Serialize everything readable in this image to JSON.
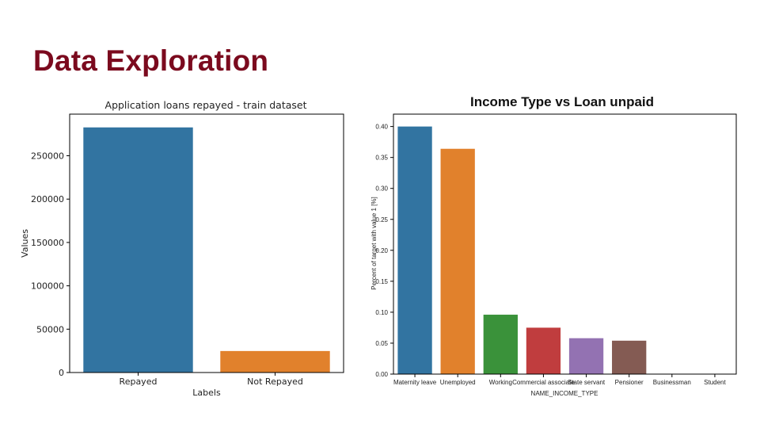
{
  "slide": {
    "title": "Data Exploration"
  },
  "chart_data": [
    {
      "type": "bar",
      "title": "Application loans repayed - train dataset",
      "xlabel": "Labels",
      "ylabel": "Values",
      "categories": [
        "Repayed",
        "Not Repayed"
      ],
      "values": [
        282700,
        24800
      ],
      "colors": [
        "#3274a1",
        "#e1812c"
      ],
      "ylim": [
        0,
        298000
      ],
      "yticks": [
        0,
        50000,
        100000,
        150000,
        200000,
        250000
      ],
      "grid": false,
      "legend": false
    },
    {
      "type": "bar",
      "title": "Income Type vs Loan unpaid",
      "xlabel": "NAME_INCOME_TYPE",
      "ylabel": "Percent of target with value 1 [%]",
      "categories": [
        "Maternity leave",
        "Unemployed",
        "Working",
        "Commercial associate",
        "State servant",
        "Pensioner",
        "Businessman",
        "Student"
      ],
      "values": [
        0.4,
        0.364,
        0.096,
        0.075,
        0.058,
        0.054,
        0.0,
        0.0
      ],
      "colors": [
        "#3274a1",
        "#e1812c",
        "#3a923a",
        "#c03d3e",
        "#9372b2",
        "#845b53",
        "#d684bd",
        "#7f7f7f"
      ],
      "ylim": [
        0,
        0.42
      ],
      "yticks": [
        0.0,
        0.05,
        0.1,
        0.15,
        0.2,
        0.25,
        0.3,
        0.35,
        0.4
      ],
      "ytick_labels": [
        "0.00",
        "0.05",
        "0.10",
        "0.15",
        "0.20",
        "0.25",
        "0.30",
        "0.35",
        "0.40"
      ],
      "grid": false,
      "legend": false
    }
  ]
}
